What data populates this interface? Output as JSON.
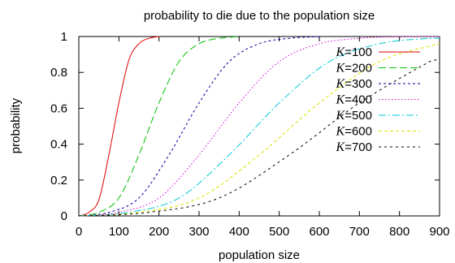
{
  "chart_data": {
    "type": "line",
    "title": "probability to die due to the population size",
    "xlabel": "population size",
    "ylabel": "probability",
    "xlim": [
      0,
      900
    ],
    "ylim": [
      0,
      1
    ],
    "x_ticks": [
      "0",
      "100",
      "200",
      "300",
      "400",
      "500",
      "600",
      "700",
      "800",
      "900"
    ],
    "y_ticks": [
      "0",
      "0.2",
      "0.4",
      "0.6",
      "0.8",
      "1"
    ],
    "grid": false,
    "legend_position": "top-right",
    "series": [
      {
        "name": "K=100",
        "k_symbol": "K",
        "k_value": "=100",
        "color": "#e00000",
        "dash": "",
        "points": [
          [
            0,
            0
          ],
          [
            25,
            0.02
          ],
          [
            50,
            0.09
          ],
          [
            75,
            0.34
          ],
          [
            100,
            0.63
          ],
          [
            125,
            0.87
          ],
          [
            150,
            0.96
          ],
          [
            175,
            0.99
          ],
          [
            200,
            1
          ]
        ]
      },
      {
        "name": "K=200",
        "k_symbol": "K",
        "k_value": "=200",
        "color": "#00c000",
        "dash": "9,4",
        "points": [
          [
            0,
            0
          ],
          [
            50,
            0.02
          ],
          [
            100,
            0.1
          ],
          [
            150,
            0.34
          ],
          [
            200,
            0.63
          ],
          [
            250,
            0.86
          ],
          [
            300,
            0.96
          ],
          [
            350,
            0.99
          ],
          [
            400,
            1
          ]
        ]
      },
      {
        "name": "K=300",
        "k_symbol": "K",
        "k_value": "=300",
        "color": "#0000a0",
        "dash": "3,3",
        "points": [
          [
            0,
            0
          ],
          [
            75,
            0.02
          ],
          [
            150,
            0.1
          ],
          [
            225,
            0.34
          ],
          [
            300,
            0.63
          ],
          [
            375,
            0.86
          ],
          [
            450,
            0.96
          ],
          [
            525,
            0.99
          ],
          [
            600,
            1
          ]
        ]
      },
      {
        "name": "K=400",
        "k_symbol": "K",
        "k_value": "=400",
        "color": "#d000d0",
        "dash": "1.5,2.5",
        "points": [
          [
            0,
            0
          ],
          [
            100,
            0.02
          ],
          [
            200,
            0.1
          ],
          [
            300,
            0.34
          ],
          [
            400,
            0.63
          ],
          [
            500,
            0.86
          ],
          [
            600,
            0.96
          ],
          [
            700,
            0.99
          ],
          [
            800,
            1
          ],
          [
            900,
            1
          ]
        ]
      },
      {
        "name": "K=500",
        "k_symbol": "K",
        "k_value": "=500",
        "color": "#00c8d8",
        "dash": "9,3,2,3",
        "points": [
          [
            0,
            0
          ],
          [
            125,
            0.02
          ],
          [
            250,
            0.1
          ],
          [
            375,
            0.34
          ],
          [
            500,
            0.63
          ],
          [
            625,
            0.86
          ],
          [
            750,
            0.96
          ],
          [
            875,
            0.99
          ],
          [
            900,
            0.99
          ]
        ]
      },
      {
        "name": "K=600",
        "k_symbol": "K",
        "k_value": "=600",
        "color": "#e0e000",
        "dash": "4,3",
        "points": [
          [
            0,
            0
          ],
          [
            150,
            0.02
          ],
          [
            300,
            0.1
          ],
          [
            450,
            0.34
          ],
          [
            600,
            0.63
          ],
          [
            750,
            0.86
          ],
          [
            900,
            0.96
          ]
        ]
      },
      {
        "name": "K=700",
        "k_symbol": "K",
        "k_value": "=700",
        "color": "#000000",
        "dash": "3,4",
        "points": [
          [
            0,
            0
          ],
          [
            175,
            0.02
          ],
          [
            350,
            0.1
          ],
          [
            525,
            0.34
          ],
          [
            700,
            0.63
          ],
          [
            875,
            0.86
          ],
          [
            900,
            0.88
          ]
        ]
      }
    ]
  }
}
